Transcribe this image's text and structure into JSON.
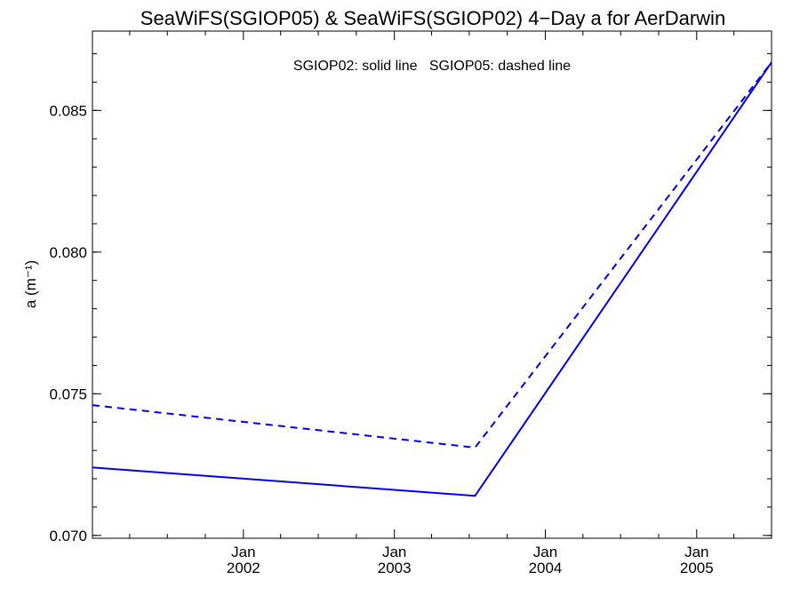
{
  "chart_data": {
    "type": "line",
    "title": "SeaWiFS(SGIOP05) & SeaWiFS(SGIOP02) 4−Day a for AerDarwin",
    "annotation": "SGIOP02: solid line   SGIOP05: dashed line",
    "ylabel": "a (m⁻¹)",
    "xlabel": "",
    "xlim": [
      "2001-01-01",
      "2005-07-01"
    ],
    "ylim": [
      0.0699,
      0.0878
    ],
    "x_ticks": [
      {
        "month": "Jan",
        "year": "2002",
        "date": "2002-01-01"
      },
      {
        "month": "Jan",
        "year": "2003",
        "date": "2003-01-01"
      },
      {
        "month": "Jan",
        "year": "2004",
        "date": "2004-01-01"
      },
      {
        "month": "Jan",
        "year": "2005",
        "date": "2005-01-01"
      }
    ],
    "y_ticks": [
      "0.070",
      "0.075",
      "0.080",
      "0.085"
    ],
    "series": [
      {
        "name": "SGIOP02",
        "style": "solid",
        "color": "#0000ee",
        "points": [
          {
            "x": "2001-01-01",
            "y": 0.0724
          },
          {
            "x": "2003-07-15",
            "y": 0.0714
          },
          {
            "x": "2005-07-01",
            "y": 0.0867
          }
        ]
      },
      {
        "name": "SGIOP05",
        "style": "dashed",
        "color": "#0000ee",
        "points": [
          {
            "x": "2001-01-01",
            "y": 0.0746
          },
          {
            "x": "2003-07-15",
            "y": 0.0731
          },
          {
            "x": "2005-07-01",
            "y": 0.0867
          }
        ]
      }
    ]
  }
}
